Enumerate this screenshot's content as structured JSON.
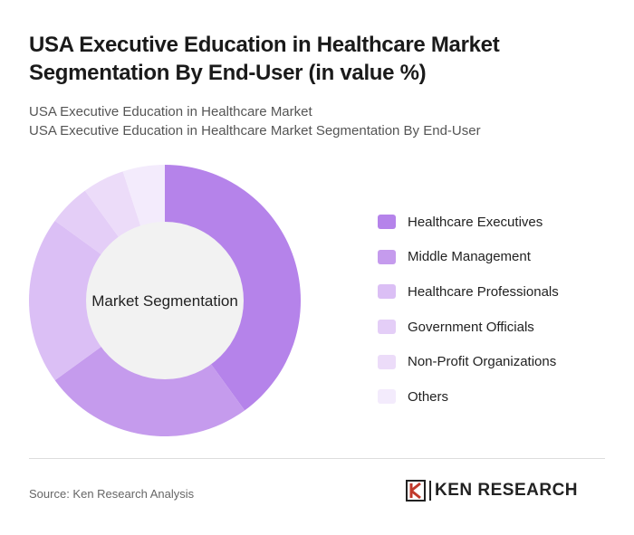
{
  "header": {
    "title": "USA Executive Education in Healthcare Market Segmentation By End-User (in value %)",
    "subtitle1": "USA Executive Education in Healthcare Market",
    "subtitle2": "USA Executive Education in Healthcare Market Segmentation By End-User"
  },
  "chart_data": {
    "type": "pie",
    "variant": "donut",
    "center_label": "Market Segmentation",
    "legend_position": "right",
    "categories": [
      "Healthcare Executives",
      "Middle Management",
      "Healthcare Professionals",
      "Government Officials",
      "Non-Profit Organizations",
      "Others"
    ],
    "values": [
      40,
      25,
      20,
      5,
      5,
      5
    ],
    "colors": [
      "#b583ea",
      "#c59bed",
      "#dbbff5",
      "#e4cef7",
      "#ecdcf9",
      "#f3ebfc"
    ]
  },
  "footer": {
    "source": "Source: Ken Research Analysis",
    "logo_text": "KEN RESEARCH"
  }
}
